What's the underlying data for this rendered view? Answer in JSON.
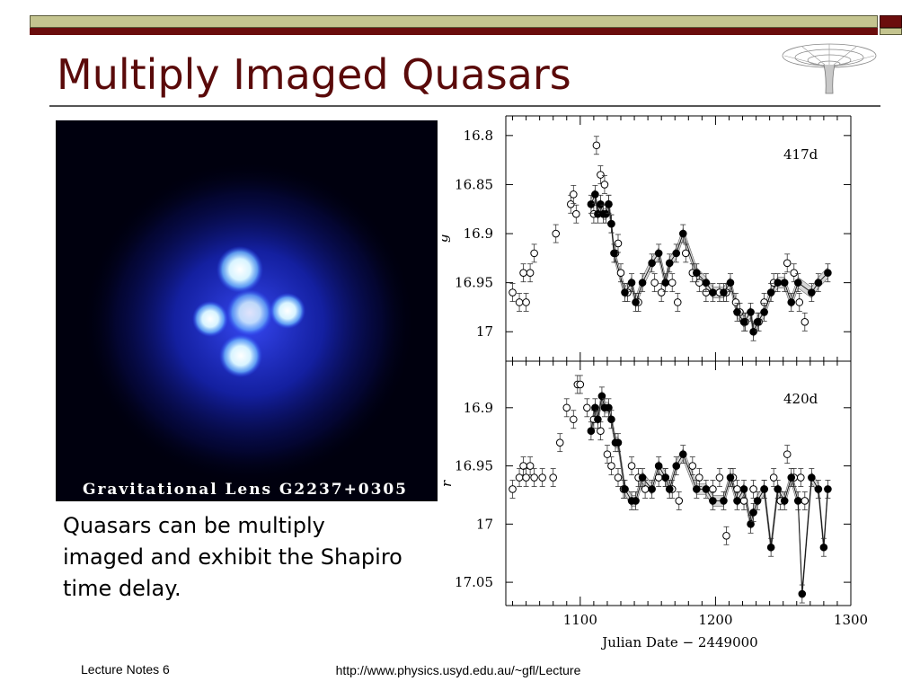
{
  "slide": {
    "title": "Multiply Imaged Quasars",
    "body_text": "Quasars can be multiply imaged and exhibit the Shapiro time delay.",
    "photo_caption": "Gravitational Lens G2237+0305",
    "footer_left": "Lecture Notes 6",
    "footer_center": "http://www.physics.usyd.edu.au/~gfl/Lecture"
  },
  "colors": {
    "banner_red": "#6b0d0d",
    "banner_olive": "#c4c48f",
    "title": "#5a0a0a"
  },
  "icons": {
    "logo": "spacetime-funnel-icon"
  },
  "chart_data": {
    "type": "scatter",
    "xlabel": "Julian Date − 2449000",
    "xlim": [
      1045,
      1300
    ],
    "x_ticks": [
      1100,
      1200,
      1300
    ],
    "panels": [
      {
        "ylabel": "g",
        "annotation": "417d",
        "ylim": [
          16.78,
          17.03
        ],
        "y_reversed": true,
        "y_ticks": [
          16.8,
          16.85,
          16.9,
          16.95,
          17
        ],
        "series": [
          {
            "marker": "open",
            "x": [
              1050,
              1055,
              1058,
              1060,
              1063,
              1066,
              1082,
              1093,
              1095,
              1097,
              1110,
              1112,
              1115,
              1118,
              1121,
              1123,
              1126,
              1128,
              1130,
              1135,
              1143,
              1155,
              1160,
              1168,
              1172,
              1178,
              1183,
              1188,
              1193,
              1203,
              1208,
              1215,
              1218,
              1222,
              1232,
              1236,
              1243,
              1253,
              1258,
              1262,
              1266
            ],
            "y": [
              16.96,
              16.97,
              16.94,
              16.97,
              16.94,
              16.92,
              16.9,
              16.87,
              16.86,
              16.88,
              16.88,
              16.81,
              16.84,
              16.85,
              16.87,
              16.89,
              16.92,
              16.91,
              16.94,
              16.96,
              16.97,
              16.95,
              16.96,
              16.95,
              16.97,
              16.92,
              16.94,
              16.95,
              16.96,
              16.96,
              16.96,
              16.97,
              16.98,
              16.99,
              16.99,
              16.97,
              16.95,
              16.93,
              16.94,
              16.97,
              16.99
            ]
          },
          {
            "marker": "filled",
            "x": [
              1108,
              1111,
              1113,
              1115,
              1117,
              1119,
              1121,
              1123,
              1125,
              1133,
              1138,
              1141,
              1146,
              1153,
              1158,
              1163,
              1166,
              1171,
              1176,
              1186,
              1193,
              1198,
              1206,
              1211,
              1216,
              1221,
              1226,
              1228,
              1231,
              1236,
              1241,
              1246,
              1251,
              1256,
              1261,
              1271,
              1276,
              1283
            ],
            "y": [
              16.87,
              16.86,
              16.88,
              16.87,
              16.88,
              16.88,
              16.87,
              16.89,
              16.92,
              16.96,
              16.95,
              16.97,
              16.95,
              16.93,
              16.92,
              16.95,
              16.93,
              16.92,
              16.9,
              16.94,
              16.95,
              16.96,
              16.96,
              16.95,
              16.98,
              16.99,
              16.98,
              17.0,
              16.99,
              16.98,
              16.96,
              16.95,
              16.95,
              16.97,
              16.95,
              16.96,
              16.95,
              16.94
            ]
          }
        ]
      },
      {
        "ylabel": "r",
        "annotation": "420d",
        "ylim": [
          16.86,
          17.07
        ],
        "y_reversed": true,
        "y_ticks": [
          16.9,
          16.95,
          17,
          17.05
        ],
        "series": [
          {
            "marker": "open",
            "x": [
              1050,
              1055,
              1058,
              1060,
              1063,
              1066,
              1072,
              1080,
              1085,
              1090,
              1095,
              1098,
              1100,
              1105,
              1110,
              1115,
              1120,
              1123,
              1128,
              1132,
              1138,
              1143,
              1148,
              1158,
              1163,
              1168,
              1173,
              1183,
              1188,
              1198,
              1203,
              1208,
              1213,
              1216,
              1221,
              1228,
              1236,
              1243,
              1248,
              1253,
              1258,
              1263,
              1266
            ],
            "y": [
              16.97,
              16.96,
              16.95,
              16.96,
              16.95,
              16.96,
              16.96,
              16.96,
              16.93,
              16.9,
              16.91,
              16.88,
              16.88,
              16.9,
              16.91,
              16.92,
              16.94,
              16.95,
              16.96,
              16.97,
              16.95,
              16.96,
              16.97,
              16.96,
              16.96,
              16.97,
              16.98,
              16.95,
              16.96,
              16.97,
              16.96,
              17.01,
              16.96,
              16.97,
              16.98,
              16.97,
              16.97,
              16.96,
              16.98,
              16.94,
              16.96,
              16.96,
              16.98
            ]
          },
          {
            "marker": "filled",
            "x": [
              1108,
              1111,
              1113,
              1116,
              1118,
              1121,
              1123,
              1126,
              1128,
              1133,
              1138,
              1141,
              1146,
              1153,
              1158,
              1163,
              1166,
              1171,
              1176,
              1186,
              1193,
              1198,
              1206,
              1211,
              1216,
              1221,
              1226,
              1228,
              1231,
              1236,
              1241,
              1246,
              1251,
              1256,
              1261,
              1264,
              1271,
              1276,
              1280,
              1283
            ],
            "y": [
              16.92,
              16.9,
              16.91,
              16.89,
              16.9,
              16.9,
              16.91,
              16.93,
              16.93,
              16.97,
              16.98,
              16.98,
              16.96,
              16.97,
              16.95,
              16.96,
              16.97,
              16.95,
              16.94,
              16.97,
              16.97,
              16.98,
              16.98,
              16.96,
              16.98,
              16.97,
              17.0,
              16.99,
              16.98,
              16.97,
              17.02,
              16.97,
              16.98,
              16.96,
              16.98,
              17.06,
              16.96,
              16.97,
              17.02,
              16.97
            ]
          }
        ]
      }
    ]
  }
}
